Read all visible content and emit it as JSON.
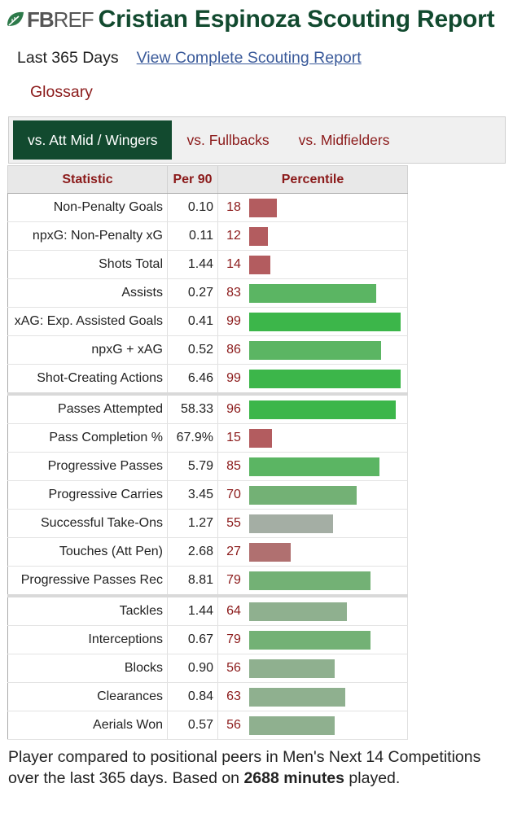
{
  "colors": {
    "brand_green": "#124a2f",
    "link_red": "#8b1a1a",
    "link_blue": "#3a5a9a",
    "bar_top": "#3cb64a",
    "bar_high": "#5bb563",
    "bar_mid_high": "#73b175",
    "bar_mid": "#8fb08f",
    "bar_neutral": "#a4aea4",
    "bar_low": "#b07070",
    "bar_bottom": "#b35c5f"
  },
  "header": {
    "logo_fb": "FB",
    "logo_ref": "REF",
    "logo_icon": "leaf-icon",
    "title": "Cristian Espinoza Scouting Report"
  },
  "subnav": {
    "range": "Last 365 Days",
    "complete_link": "View Complete Scouting Report",
    "glossary": "Glossary"
  },
  "tabs": [
    {
      "label": "vs. Att Mid / Wingers",
      "active": true
    },
    {
      "label": "vs. Fullbacks",
      "active": false
    },
    {
      "label": "vs. Midfielders",
      "active": false
    }
  ],
  "table": {
    "headers": {
      "statistic": "Statistic",
      "per90": "Per 90",
      "percentile": "Percentile"
    },
    "groups": [
      [
        {
          "stat": "Non-Penalty Goals",
          "per90": "0.10",
          "percentile": 18
        },
        {
          "stat": "npxG: Non-Penalty xG",
          "per90": "0.11",
          "percentile": 12
        },
        {
          "stat": "Shots Total",
          "per90": "1.44",
          "percentile": 14
        },
        {
          "stat": "Assists",
          "per90": "0.27",
          "percentile": 83
        },
        {
          "stat": "xAG: Exp. Assisted Goals",
          "per90": "0.41",
          "percentile": 99
        },
        {
          "stat": "npxG + xAG",
          "per90": "0.52",
          "percentile": 86
        },
        {
          "stat": "Shot-Creating Actions",
          "per90": "6.46",
          "percentile": 99
        }
      ],
      [
        {
          "stat": "Passes Attempted",
          "per90": "58.33",
          "percentile": 96
        },
        {
          "stat": "Pass Completion %",
          "per90": "67.9%",
          "percentile": 15
        },
        {
          "stat": "Progressive Passes",
          "per90": "5.79",
          "percentile": 85
        },
        {
          "stat": "Progressive Carries",
          "per90": "3.45",
          "percentile": 70
        },
        {
          "stat": "Successful Take-Ons",
          "per90": "1.27",
          "percentile": 55
        },
        {
          "stat": "Touches (Att Pen)",
          "per90": "2.68",
          "percentile": 27
        },
        {
          "stat": "Progressive Passes Rec",
          "per90": "8.81",
          "percentile": 79
        }
      ],
      [
        {
          "stat": "Tackles",
          "per90": "1.44",
          "percentile": 64
        },
        {
          "stat": "Interceptions",
          "per90": "0.67",
          "percentile": 79
        },
        {
          "stat": "Blocks",
          "per90": "0.90",
          "percentile": 56
        },
        {
          "stat": "Clearances",
          "per90": "0.84",
          "percentile": 63
        },
        {
          "stat": "Aerials Won",
          "per90": "0.57",
          "percentile": 56
        }
      ]
    ]
  },
  "footnote": {
    "before": "Player compared to positional peers in Men's Next 14 Competitions over the last 365 days. Based on ",
    "minutes": "2688 minutes",
    "after": " played."
  }
}
